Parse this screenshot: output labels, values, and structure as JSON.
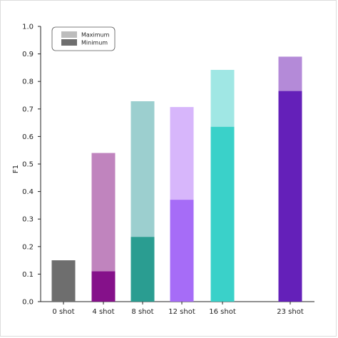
{
  "chart_data": {
    "type": "bar",
    "ylabel": "F1",
    "xlabel": "",
    "ylim": [
      0,
      1.0
    ],
    "yticks": [
      "0.0",
      "0.1",
      "0.2",
      "0.3",
      "0.4",
      "0.5",
      "0.6",
      "0.7",
      "0.8",
      "0.9",
      "1.0"
    ],
    "categories": [
      "0 shot",
      "4 shot",
      "8 shot",
      "12 shot",
      "16 shot",
      "23 shot"
    ],
    "series": [
      {
        "name": "Minimum",
        "values": [
          0.15,
          0.11,
          0.235,
          0.37,
          0.635,
          0.765
        ]
      },
      {
        "name": "Maximum",
        "values": [
          0.15,
          0.54,
          0.728,
          0.707,
          0.842,
          0.89
        ]
      }
    ],
    "colors": {
      "minimum": [
        "#6e6e6e",
        "#85118a",
        "#2a9d91",
        "#a66cf7",
        "#3ad1c9",
        "#6420b9"
      ],
      "maximum": [
        "#6e6e6e",
        "#c084be",
        "#9ccfcf",
        "#d7b6fb",
        "#a0e7e4",
        "#b48ad8"
      ]
    },
    "legend": {
      "position": "top-left",
      "entries": [
        {
          "label": "Maximum",
          "color": "#bdbdbd"
        },
        {
          "label": "Minimum",
          "color": "#6e6e6e"
        }
      ]
    },
    "grid": false
  }
}
